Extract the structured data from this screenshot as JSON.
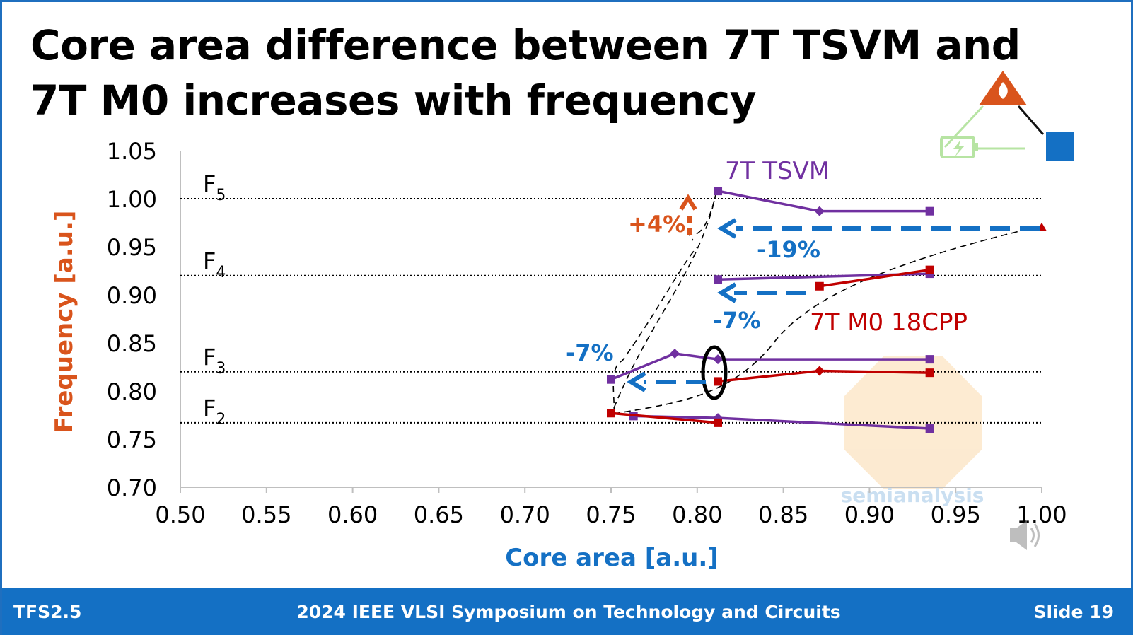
{
  "title": "Core area difference between 7T TSVM and 7T M0 increases with frequency",
  "footer": {
    "left": "TFS2.5",
    "center": "2024 IEEE VLSI Symposium on Technology and Circuits",
    "right": "Slide 19"
  },
  "logo": {
    "name": "semianalysis",
    "icons": [
      "flame-warning-icon",
      "battery-icon",
      "blue-square-icon"
    ]
  },
  "speaker_icon": "speaker-icon",
  "colors": {
    "tsvm": "#7030a0",
    "m0": "#c00000",
    "arrow_blue": "#1470c4",
    "arrow_orange": "#d9541c",
    "ylabel": "#d9541c",
    "xlabel": "#1470c4",
    "footer": "#1470c4"
  },
  "chart_data": {
    "type": "line",
    "xlabel": "Core area [a.u.]",
    "ylabel": "Frequency [a.u.]",
    "xlim": [
      0.5,
      1.0
    ],
    "ylim": [
      0.7,
      1.05
    ],
    "xticks": [
      "0.50",
      "0.55",
      "0.60",
      "0.65",
      "0.70",
      "0.75",
      "0.80",
      "0.85",
      "0.90",
      "0.95",
      "1.00"
    ],
    "yticks": [
      "0.70",
      "0.75",
      "0.80",
      "0.85",
      "0.90",
      "0.95",
      "1.00",
      "1.05"
    ],
    "grid": false,
    "frequency_levels": [
      {
        "label": "F",
        "sub": "5",
        "y": 1.0
      },
      {
        "label": "F",
        "sub": "4",
        "y": 0.92
      },
      {
        "label": "F",
        "sub": "3",
        "y": 0.82
      },
      {
        "label": "F",
        "sub": "2",
        "y": 0.767
      }
    ],
    "series": [
      {
        "name": "7T TSVM",
        "color": "#7030a0",
        "lines": [
          [
            [
              0.812,
              1.008
            ],
            [
              0.871,
              0.987
            ],
            [
              0.935,
              0.987
            ]
          ],
          [
            [
              0.812,
              0.916
            ],
            [
              0.935,
              0.922
            ]
          ],
          [
            [
              0.75,
              0.812
            ],
            [
              0.787,
              0.839
            ],
            [
              0.812,
              0.833
            ],
            [
              0.935,
              0.833
            ]
          ],
          [
            [
              0.763,
              0.774
            ],
            [
              0.812,
              0.772
            ],
            [
              0.935,
              0.761
            ]
          ]
        ]
      },
      {
        "name": "7T M0 18CPP",
        "color": "#c00000",
        "lines": [
          [
            [
              1.0,
              0.97
            ]
          ],
          [
            [
              0.871,
              0.909
            ],
            [
              0.935,
              0.926
            ]
          ],
          [
            [
              0.812,
              0.81
            ],
            [
              0.871,
              0.821
            ],
            [
              0.935,
              0.819
            ]
          ],
          [
            [
              0.75,
              0.777
            ],
            [
              0.812,
              0.767
            ]
          ]
        ]
      }
    ],
    "annotations": [
      {
        "text": "+4%",
        "color": "#d9541c"
      },
      {
        "text": "-19%",
        "color": "#1470c4"
      },
      {
        "text": "-7%",
        "color": "#1470c4"
      },
      {
        "text": "-7%",
        "color": "#1470c4"
      }
    ]
  }
}
